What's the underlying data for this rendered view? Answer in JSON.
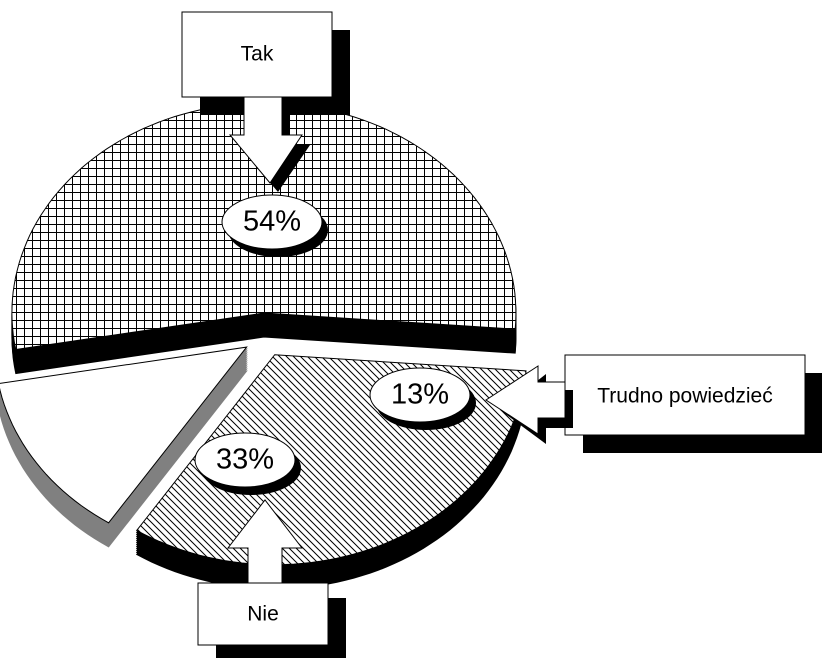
{
  "chart_data": {
    "type": "pie",
    "categories": [
      "Tak",
      "Nie",
      "Trudno powiedzieć"
    ],
    "values": [
      54,
      33,
      13
    ],
    "value_labels": [
      "54%",
      "33%",
      "13%"
    ]
  }
}
